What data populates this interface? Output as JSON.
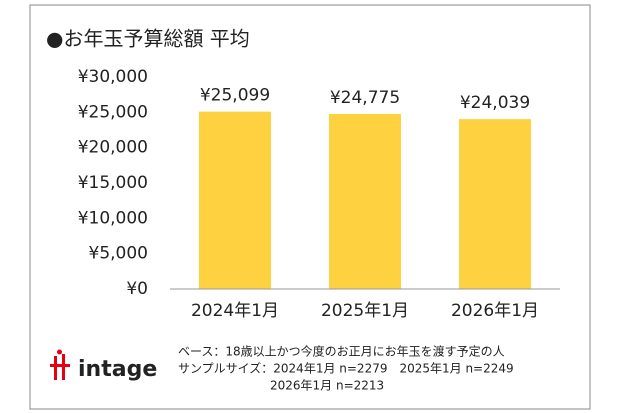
{
  "chart_data": {
    "type": "bar",
    "title": "●お年玉予算総額 平均",
    "categories": [
      "2024年1月",
      "2025年1月",
      "2026年1月"
    ],
    "values": [
      25099,
      24775,
      24039
    ],
    "value_labels": [
      "¥25,099",
      "¥24,775",
      "¥24,039"
    ],
    "color": "#fdd13f",
    "ylim": [
      0,
      30000
    ],
    "yticks": [
      {
        "value": 0,
        "label": "¥0"
      },
      {
        "value": 5000,
        "label": "¥5,000"
      },
      {
        "value": 10000,
        "label": "¥10,000"
      },
      {
        "value": 15000,
        "label": "¥15,000"
      },
      {
        "value": 20000,
        "label": "¥20,000"
      },
      {
        "value": 25000,
        "label": "¥25,000"
      },
      {
        "value": 30000,
        "label": "¥30,000"
      }
    ],
    "grid": false,
    "notes": [
      "ベース：18歳以上かつ今度のお正月にお年玉を渡す予定の人",
      "サンプルサイズ：2024年1月 n=2279　2025年1月 n=2249",
      "2026年1月 n=2213"
    ],
    "logo": "intage"
  }
}
